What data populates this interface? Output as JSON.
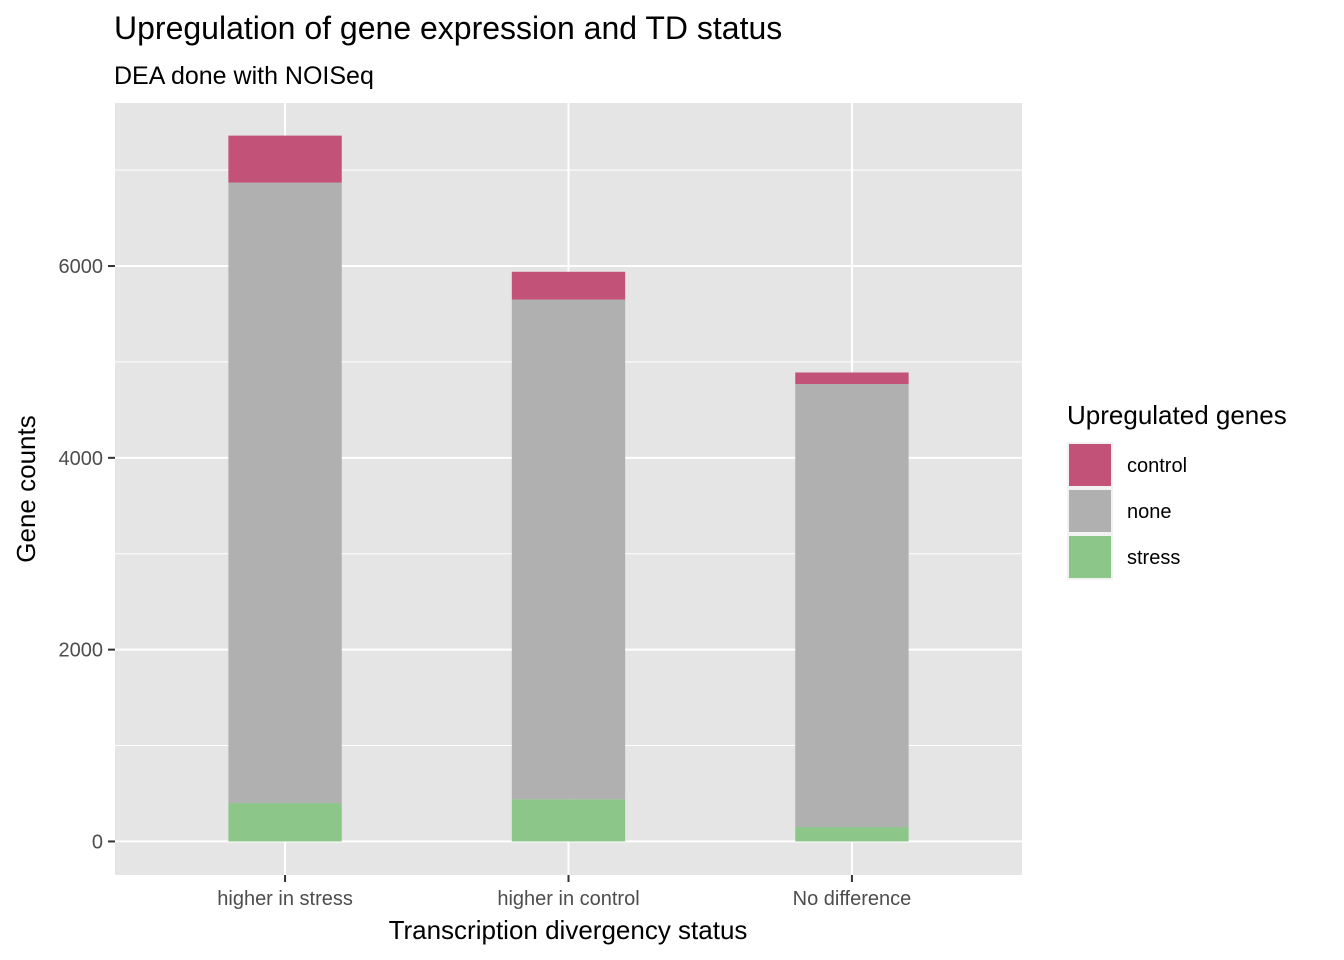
{
  "chart_data": {
    "type": "bar",
    "stacked": true,
    "title": "Upregulation of gene expression and TD status",
    "subtitle": "DEA done with NOISeq",
    "xlabel": "Transcription divergency status",
    "ylabel": "Gene counts",
    "categories": [
      "higher in stress",
      "higher in control",
      "No difference"
    ],
    "ylim": [
      -350,
      7700
    ],
    "yticks": [
      0,
      2000,
      4000,
      6000
    ],
    "series": [
      {
        "name": "stress",
        "color": "#8DC689",
        "values": [
          400,
          440,
          150
        ]
      },
      {
        "name": "none",
        "color": "#B0B0B0",
        "values": [
          6470,
          5210,
          4620
        ]
      },
      {
        "name": "control",
        "color": "#C25277",
        "values": [
          490,
          290,
          120
        ]
      }
    ],
    "legend": {
      "title": "Upregulated genes",
      "position": "right",
      "entries": [
        "control",
        "none",
        "stress"
      ]
    },
    "grid": true,
    "colors": {
      "panel": "#E5E5E5",
      "gridline": "#FFFFFF",
      "tick": "#333333"
    }
  }
}
